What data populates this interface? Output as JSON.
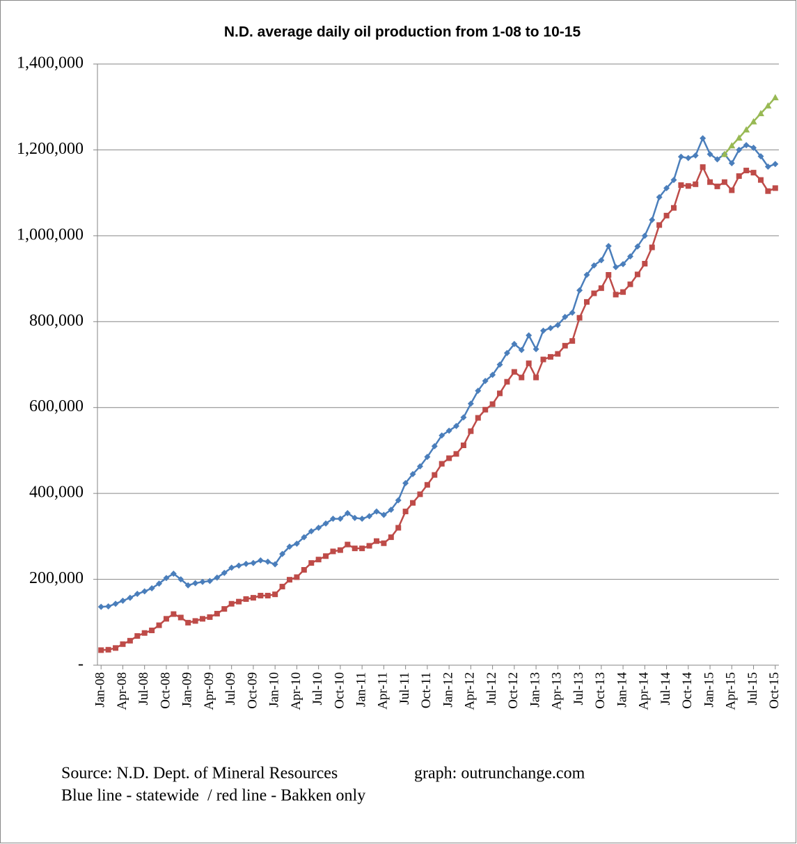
{
  "chart_data": {
    "type": "line",
    "title": "N.D. average daily oil production from 1-08 to 10-15",
    "notes": [
      "Source: N.D. Dept. of Mineral Resources",
      "graph: outrunchange.com",
      "Blue line - statewide  / red line - Bakken only"
    ],
    "categories": [
      "Jan-08",
      null,
      null,
      "Apr-08",
      null,
      null,
      "Jul-08",
      null,
      null,
      "Oct-08",
      null,
      null,
      "Jan-09",
      null,
      null,
      "Apr-09",
      null,
      null,
      "Jul-09",
      null,
      null,
      "Oct-09",
      null,
      null,
      "Jan-10",
      null,
      null,
      "Apr-10",
      null,
      null,
      "Jul-10",
      null,
      null,
      "Oct-10",
      null,
      null,
      "Jan-11",
      null,
      null,
      "Apr-11",
      null,
      null,
      "Jul-11",
      null,
      null,
      "Oct-11",
      null,
      null,
      "Jan-12",
      null,
      null,
      "Apr-12",
      null,
      null,
      "Jul-12",
      null,
      null,
      "Oct-12",
      null,
      null,
      "Jan-13",
      null,
      null,
      "Apr-13",
      null,
      null,
      "Jul-13",
      null,
      null,
      "Oct-13",
      null,
      null,
      "Jan-14",
      null,
      null,
      "Apr-14",
      null,
      null,
      "Jul-14",
      null,
      null,
      "Oct-14",
      null,
      null,
      "Jan-15",
      null,
      null,
      "Apr-15",
      null,
      null,
      "Jul-15",
      null,
      null,
      "Oct-15"
    ],
    "series": [
      {
        "color": "#4a7ebb",
        "marker": "diamond",
        "values": [
          136000,
          137000,
          143000,
          150000,
          157000,
          166000,
          172000,
          179000,
          190000,
          203000,
          213000,
          200000,
          186000,
          191000,
          194000,
          196000,
          204000,
          215000,
          227000,
          232000,
          236000,
          238000,
          244000,
          241000,
          235000,
          259000,
          276000,
          283000,
          298000,
          312000,
          320000,
          330000,
          341000,
          341000,
          354000,
          343000,
          341000,
          347000,
          358000,
          350000,
          362000,
          384000,
          424000,
          445000,
          463000,
          485000,
          510000,
          535000,
          546000,
          557000,
          577000,
          609000,
          639000,
          662000,
          676000,
          700000,
          727000,
          748000,
          734000,
          768000,
          736000,
          779000,
          785000,
          792000,
          811000,
          821000,
          873000,
          909000,
          931000,
          943000,
          976000,
          927000,
          934000,
          952000,
          975000,
          1000000,
          1037000,
          1090000,
          1111000,
          1130000,
          1184000,
          1181000,
          1187000,
          1227000,
          1190000,
          1178000,
          1190000,
          1169000,
          1200000,
          1211000,
          1205000,
          1185000,
          1161000,
          1167000
        ]
      },
      {
        "color": "#be4b48",
        "marker": "square",
        "values": [
          35000,
          36000,
          40000,
          49000,
          57000,
          68000,
          75000,
          81000,
          93000,
          108000,
          119000,
          111000,
          99000,
          103000,
          108000,
          112000,
          120000,
          131000,
          143000,
          148000,
          154000,
          157000,
          162000,
          162000,
          165000,
          183000,
          199000,
          205000,
          222000,
          238000,
          246000,
          254000,
          265000,
          268000,
          281000,
          272000,
          272000,
          278000,
          289000,
          284000,
          298000,
          320000,
          358000,
          378000,
          398000,
          420000,
          443000,
          469000,
          482000,
          492000,
          512000,
          545000,
          576000,
          595000,
          608000,
          633000,
          660000,
          683000,
          670000,
          703000,
          670000,
          712000,
          718000,
          725000,
          744000,
          755000,
          809000,
          846000,
          866000,
          878000,
          909000,
          863000,
          869000,
          887000,
          910000,
          935000,
          973000,
          1025000,
          1047000,
          1065000,
          1118000,
          1116000,
          1120000,
          1160000,
          1125000,
          1115000,
          1125000,
          1106000,
          1139000,
          1152000,
          1147000,
          1130000,
          1104000,
          1111000
        ]
      },
      {
        "color": "#98b954",
        "marker": "triangle",
        "values": [
          null,
          null,
          null,
          null,
          null,
          null,
          null,
          null,
          null,
          null,
          null,
          null,
          null,
          null,
          null,
          null,
          null,
          null,
          null,
          null,
          null,
          null,
          null,
          null,
          null,
          null,
          null,
          null,
          null,
          null,
          null,
          null,
          null,
          null,
          null,
          null,
          null,
          null,
          null,
          null,
          null,
          null,
          null,
          null,
          null,
          null,
          null,
          null,
          null,
          null,
          null,
          null,
          null,
          null,
          null,
          null,
          null,
          null,
          null,
          null,
          null,
          null,
          null,
          null,
          null,
          null,
          null,
          null,
          null,
          null,
          null,
          null,
          null,
          null,
          null,
          null,
          null,
          null,
          null,
          null,
          null,
          null,
          null,
          null,
          null,
          null,
          1190000,
          1210000,
          1228000,
          1247000,
          1266000,
          1285000,
          1303000,
          1322000
        ]
      }
    ],
    "ylim": [
      0,
      1400000
    ],
    "yticks": [
      {
        "value": 0,
        "label": "-"
      },
      {
        "value": 200000,
        "label": "200,000"
      },
      {
        "value": 400000,
        "label": "400,000"
      },
      {
        "value": 600000,
        "label": "600,000"
      },
      {
        "value": 800000,
        "label": "800,000"
      },
      {
        "value": 1000000,
        "label": "1,000,000"
      },
      {
        "value": 1200000,
        "label": "1,200,000"
      },
      {
        "value": 1400000,
        "label": "1,400,000"
      }
    ],
    "grid": true
  }
}
